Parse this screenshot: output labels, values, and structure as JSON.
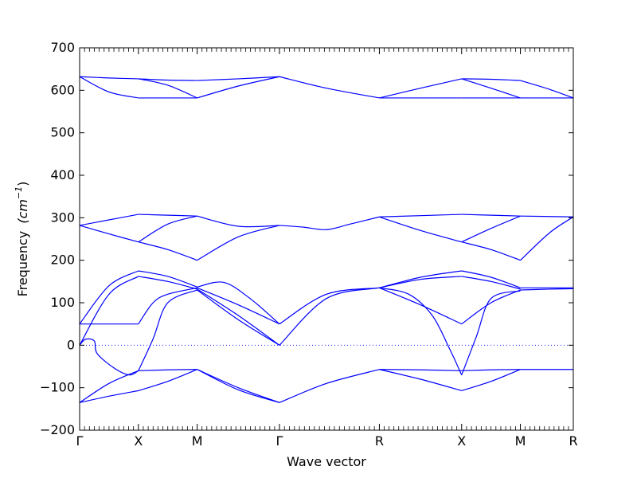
{
  "chart_data": {
    "type": "line",
    "xlabel": "Wave vector",
    "ylabel": "Frequency",
    "ylabel_unit": "(cm",
    "ylabel_unit_exp": "−1",
    "ylabel_unit_close": ")",
    "ylim": [
      -200,
      700
    ],
    "yticks": [
      -200,
      -100,
      0,
      100,
      200,
      300,
      400,
      500,
      600,
      700
    ],
    "xlim": [
      0,
      8.4
    ],
    "high_symmetry_points": [
      {
        "label": "Γ",
        "x": 0
      },
      {
        "label": "X",
        "x": 1.0
      },
      {
        "label": "M",
        "x": 2.0
      },
      {
        "label": "Γ",
        "x": 3.4
      },
      {
        "label": "R",
        "x": 5.1
      },
      {
        "label": "X",
        "x": 6.5
      },
      {
        "label": "M",
        "x": 7.5
      },
      {
        "label": "R",
        "x": 8.4
      }
    ],
    "zero_line": true,
    "line_color": "#0000ff",
    "segments": [
      {
        "x0": 0,
        "x1": 1.0,
        "bands": [
          [
            [
              0,
              632
            ],
            [
              0.5,
              629
            ],
            [
              1.0,
              627
            ]
          ],
          [
            [
              0,
              632
            ],
            [
              0.5,
              596
            ],
            [
              1.0,
              582
            ]
          ],
          [
            [
              0,
              282
            ],
            [
              0.5,
              295
            ],
            [
              1.0,
              308
            ]
          ],
          [
            [
              0,
              282
            ],
            [
              0.5,
              262
            ],
            [
              1.0,
              243
            ]
          ],
          [
            [
              0,
              50
            ],
            [
              0.5,
              50
            ],
            [
              1.0,
              50
            ]
          ],
          [
            [
              0,
              50
            ],
            [
              0.5,
              140
            ],
            [
              1.0,
              175
            ]
          ],
          [
            [
              0,
              0
            ],
            [
              0.5,
              120
            ],
            [
              1.0,
              162
            ]
          ],
          [
            [
              0,
              0
            ],
            [
              0.1,
              14
            ],
            [
              0.25,
              10
            ],
            [
              0.3,
              -20
            ],
            [
              0.6,
              -55
            ],
            [
              0.85,
              -70
            ],
            [
              1.0,
              -60
            ]
          ],
          [
            [
              0,
              -135
            ],
            [
              0.5,
              -120
            ],
            [
              1.0,
              -107
            ]
          ],
          [
            [
              0,
              -135
            ],
            [
              0.5,
              -90
            ],
            [
              1.0,
              -60
            ]
          ]
        ]
      },
      {
        "x0": 1.0,
        "x1": 2.0,
        "bands": [
          [
            [
              1.0,
              627
            ],
            [
              1.5,
              624
            ],
            [
              2.0,
              623
            ]
          ],
          [
            [
              1.0,
              627
            ],
            [
              1.5,
              612
            ],
            [
              2.0,
              582
            ]
          ],
          [
            [
              1.0,
              582
            ],
            [
              1.5,
              582
            ],
            [
              2.0,
              582
            ]
          ],
          [
            [
              1.0,
              308
            ],
            [
              1.5,
              306
            ],
            [
              2.0,
              304
            ]
          ],
          [
            [
              1.0,
              243
            ],
            [
              1.5,
              285
            ],
            [
              2.0,
              304
            ]
          ],
          [
            [
              1.0,
              243
            ],
            [
              1.5,
              225
            ],
            [
              2.0,
              200
            ]
          ],
          [
            [
              1.0,
              175
            ],
            [
              1.5,
              162
            ],
            [
              2.0,
              137
            ]
          ],
          [
            [
              1.0,
              162
            ],
            [
              1.5,
              150
            ],
            [
              2.0,
              132
            ]
          ],
          [
            [
              1.0,
              50
            ],
            [
              1.25,
              100
            ],
            [
              1.5,
              120
            ],
            [
              2.0,
              135
            ]
          ],
          [
            [
              1.0,
              -60
            ],
            [
              1.25,
              15
            ],
            [
              1.5,
              100
            ],
            [
              2.0,
              130
            ]
          ],
          [
            [
              1.0,
              -60
            ],
            [
              1.5,
              -58
            ],
            [
              2.0,
              -57
            ]
          ],
          [
            [
              1.0,
              -107
            ],
            [
              1.5,
              -85
            ],
            [
              2.0,
              -57
            ]
          ]
        ]
      },
      {
        "x0": 2.0,
        "x1": 3.4,
        "bands": [
          [
            [
              2.0,
              623
            ],
            [
              2.7,
              627
            ],
            [
              3.4,
              632
            ]
          ],
          [
            [
              2.0,
              582
            ],
            [
              2.7,
              610
            ],
            [
              3.4,
              632
            ]
          ],
          [
            [
              2.0,
              304
            ],
            [
              2.7,
              280
            ],
            [
              3.4,
              282
            ]
          ],
          [
            [
              2.0,
              200
            ],
            [
              2.7,
              255
            ],
            [
              3.4,
              282
            ]
          ],
          [
            [
              2.0,
              137
            ],
            [
              2.45,
              148
            ],
            [
              2.9,
              110
            ],
            [
              3.4,
              50
            ]
          ],
          [
            [
              2.0,
              135
            ],
            [
              2.7,
              95
            ],
            [
              3.4,
              50
            ]
          ],
          [
            [
              2.0,
              132
            ],
            [
              2.7,
              70
            ],
            [
              3.4,
              0
            ]
          ],
          [
            [
              2.0,
              130
            ],
            [
              2.7,
              60
            ],
            [
              3.4,
              0
            ]
          ],
          [
            [
              2.0,
              -57
            ],
            [
              2.7,
              -100
            ],
            [
              3.4,
              -135
            ]
          ],
          [
            [
              2.0,
              -57
            ],
            [
              2.7,
              -105
            ],
            [
              3.4,
              -135
            ]
          ]
        ]
      },
      {
        "x0": 3.4,
        "x1": 5.1,
        "bands": [
          [
            [
              3.4,
              632
            ],
            [
              4.2,
              605
            ],
            [
              5.1,
              582
            ]
          ],
          [
            [
              3.4,
              282
            ],
            [
              3.8,
              278
            ],
            [
              4.2,
              272
            ],
            [
              4.6,
              285
            ],
            [
              5.1,
              302
            ]
          ],
          [
            [
              3.4,
              50
            ],
            [
              4.2,
              120
            ],
            [
              5.1,
              135
            ]
          ],
          [
            [
              3.4,
              0
            ],
            [
              4.2,
              110
            ],
            [
              5.1,
              135
            ]
          ],
          [
            [
              3.4,
              -135
            ],
            [
              4.2,
              -90
            ],
            [
              5.1,
              -57
            ]
          ]
        ]
      },
      {
        "x0": 5.1,
        "x1": 6.5,
        "bands": [
          [
            [
              5.1,
              582
            ],
            [
              5.8,
              605
            ],
            [
              6.5,
              627
            ]
          ],
          [
            [
              5.1,
              582
            ],
            [
              5.8,
              582
            ],
            [
              6.5,
              582
            ]
          ],
          [
            [
              5.1,
              302
            ],
            [
              5.8,
              305
            ],
            [
              6.5,
              308
            ]
          ],
          [
            [
              5.1,
              302
            ],
            [
              5.8,
              270
            ],
            [
              6.5,
              243
            ]
          ],
          [
            [
              5.1,
              135
            ],
            [
              5.8,
              160
            ],
            [
              6.5,
              175
            ]
          ],
          [
            [
              5.1,
              135
            ],
            [
              5.8,
              155
            ],
            [
              6.5,
              162
            ]
          ],
          [
            [
              5.1,
              135
            ],
            [
              5.8,
              95
            ],
            [
              6.5,
              50
            ]
          ],
          [
            [
              5.1,
              135
            ],
            [
              5.6,
              120
            ],
            [
              6.0,
              70
            ],
            [
              6.3,
              -10
            ],
            [
              6.5,
              -70
            ]
          ],
          [
            [
              5.1,
              -57
            ],
            [
              5.8,
              -58
            ],
            [
              6.5,
              -60
            ]
          ],
          [
            [
              5.1,
              -57
            ],
            [
              5.8,
              -80
            ],
            [
              6.5,
              -107
            ]
          ]
        ]
      },
      {
        "x0": 6.5,
        "x1": 7.5,
        "bands": [
          [
            [
              6.5,
              627
            ],
            [
              7.0,
              626
            ],
            [
              7.5,
              623
            ]
          ],
          [
            [
              6.5,
              627
            ],
            [
              7.0,
              605
            ],
            [
              7.5,
              582
            ]
          ],
          [
            [
              6.5,
              582
            ],
            [
              7.0,
              582
            ],
            [
              7.5,
              582
            ]
          ],
          [
            [
              6.5,
              308
            ],
            [
              7.0,
              306
            ],
            [
              7.5,
              304
            ]
          ],
          [
            [
              6.5,
              243
            ],
            [
              7.0,
              275
            ],
            [
              7.5,
              304
            ]
          ],
          [
            [
              6.5,
              243
            ],
            [
              7.0,
              225
            ],
            [
              7.5,
              200
            ]
          ],
          [
            [
              6.5,
              175
            ],
            [
              7.0,
              160
            ],
            [
              7.5,
              135
            ]
          ],
          [
            [
              6.5,
              162
            ],
            [
              7.0,
              150
            ],
            [
              7.5,
              132
            ]
          ],
          [
            [
              6.5,
              50
            ],
            [
              7.0,
              100
            ],
            [
              7.5,
              130
            ]
          ],
          [
            [
              6.5,
              -70
            ],
            [
              6.75,
              20
            ],
            [
              7.0,
              110
            ],
            [
              7.5,
              128
            ]
          ],
          [
            [
              6.5,
              -60
            ],
            [
              7.0,
              -58
            ],
            [
              7.5,
              -57
            ]
          ],
          [
            [
              6.5,
              -107
            ],
            [
              7.0,
              -85
            ],
            [
              7.5,
              -57
            ]
          ]
        ]
      },
      {
        "x0": 7.5,
        "x1": 8.4,
        "bands": [
          [
            [
              7.5,
              623
            ],
            [
              8.0,
              602
            ],
            [
              8.4,
              582
            ]
          ],
          [
            [
              7.5,
              582
            ],
            [
              8.0,
              582
            ],
            [
              8.4,
              582
            ]
          ],
          [
            [
              7.5,
              304
            ],
            [
              8.0,
              303
            ],
            [
              8.4,
              302
            ]
          ],
          [
            [
              7.5,
              200
            ],
            [
              8.0,
              265
            ],
            [
              8.4,
              302
            ]
          ],
          [
            [
              7.5,
              135
            ],
            [
              8.0,
              135
            ],
            [
              8.4,
              135
            ]
          ],
          [
            [
              7.5,
              130
            ],
            [
              8.0,
              132
            ],
            [
              8.4,
              133
            ]
          ],
          [
            [
              7.5,
              -57
            ],
            [
              8.0,
              -57
            ],
            [
              8.4,
              -57
            ]
          ]
        ]
      }
    ]
  }
}
